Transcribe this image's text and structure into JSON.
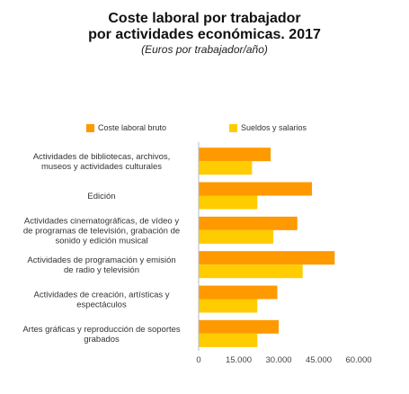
{
  "chart_data": {
    "type": "bar",
    "orientation": "horizontal",
    "title": [
      "Coste laboral por trabajador",
      "por actividades económicas. 2017"
    ],
    "subtitle": "(Euros por trabajador/año)",
    "categories": [
      [
        "Actividades de bibliotecas, archivos,",
        "museos y actividades culturales"
      ],
      [
        "Edición"
      ],
      [
        "Actividades cinematográficas, de vídeo y",
        "de programas de televisión, grabación de",
        "sonido y edición musical"
      ],
      [
        "Actividades de programación y emisión",
        "de radio y televisión"
      ],
      [
        "Actividades de creación, artísticas y",
        "espectáculos"
      ],
      [
        "Artes gráficas y reproducción de soportes",
        "grabados"
      ]
    ],
    "series": [
      {
        "name": "Coste laboral bruto",
        "color": "#FF9900",
        "values": [
          27000,
          42500,
          37000,
          51000,
          29500,
          30000
        ]
      },
      {
        "name": "Sueldos y salarios",
        "color": "#FFCC00",
        "values": [
          20000,
          22000,
          28000,
          39000,
          22000,
          22000
        ]
      }
    ],
    "xticks": [
      "0",
      "15.000",
      "30.000",
      "45.000",
      "60.000"
    ],
    "xlim": [
      0,
      60000
    ],
    "grid": false,
    "legend_position": "top"
  }
}
